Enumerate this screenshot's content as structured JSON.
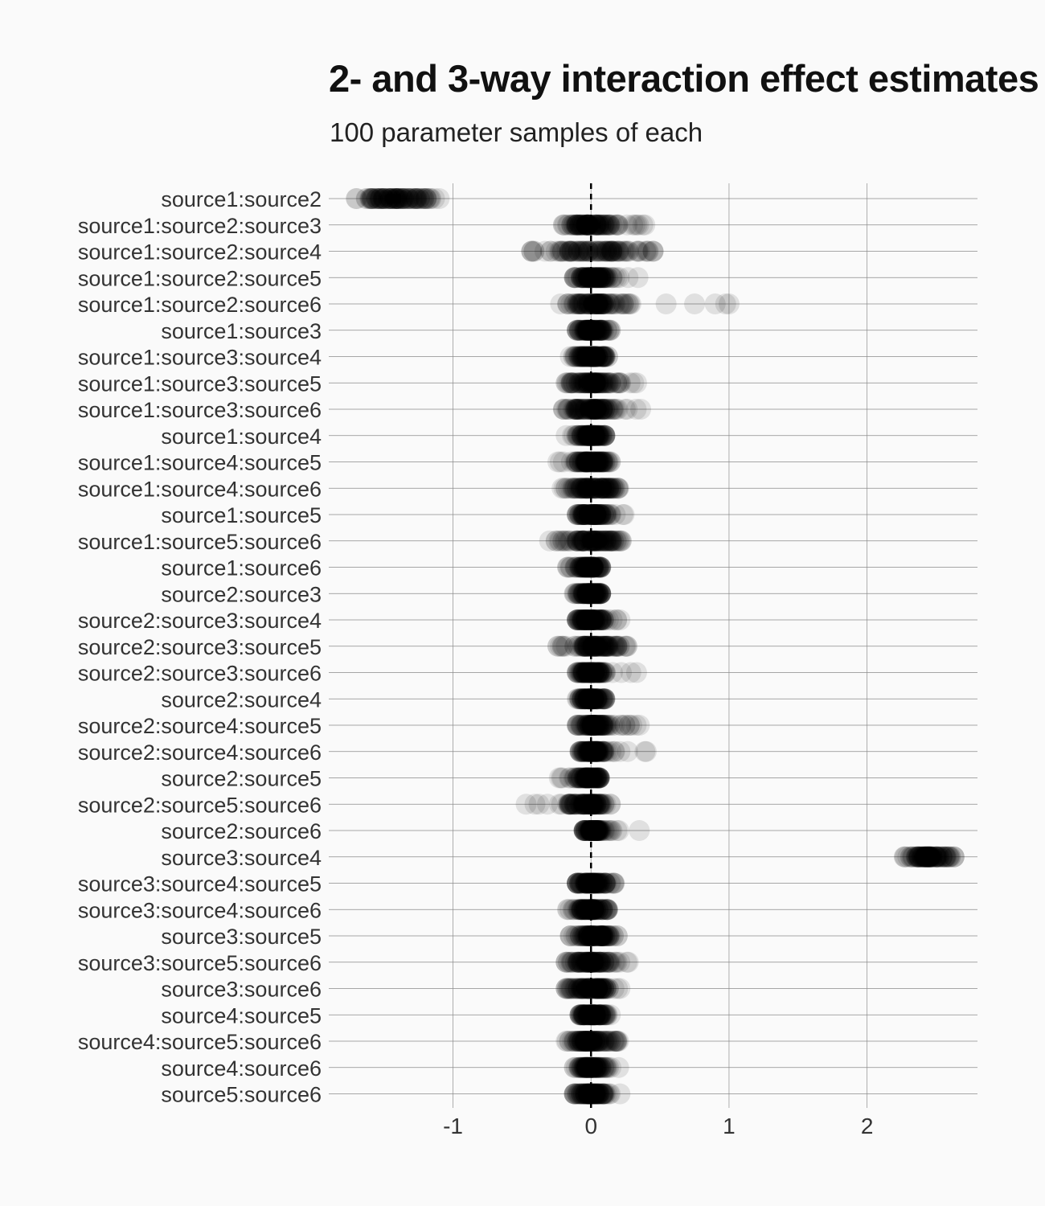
{
  "title": "2- and 3-way interaction effect estimates",
  "subtitle": "100 parameter samples of each",
  "chart_data": {
    "type": "scatter",
    "title": "2- and 3-way interaction effect estimates",
    "subtitle": "100 parameter samples of each",
    "xlabel": "",
    "ylabel": "",
    "xlim": [
      -1.9,
      2.8
    ],
    "xticks": [
      -1,
      0,
      1,
      2
    ],
    "xtick_labels": [
      "-1",
      "0",
      "1",
      "2"
    ],
    "grid": true,
    "reference_line_x": 0,
    "point_color": "#000000",
    "point_alpha": 0.1,
    "categories": [
      "source1:source2",
      "source1:source2:source3",
      "source1:source2:source4",
      "source1:source2:source5",
      "source1:source2:source6",
      "source1:source3",
      "source1:source3:source4",
      "source1:source3:source5",
      "source1:source3:source6",
      "source1:source4",
      "source1:source4:source5",
      "source1:source4:source6",
      "source1:source5",
      "source1:source5:source6",
      "source1:source6",
      "source2:source3",
      "source2:source3:source4",
      "source2:source3:source5",
      "source2:source3:source6",
      "source2:source4",
      "source2:source4:source5",
      "source2:source4:source6",
      "source2:source5",
      "source2:source5:source6",
      "source2:source6",
      "source3:source4",
      "source3:source4:source5",
      "source3:source4:source6",
      "source3:source5",
      "source3:source5:source6",
      "source3:source6",
      "source4:source5",
      "source4:source5:source6",
      "source4:source6",
      "source5:source6"
    ],
    "samples_per_term": 100,
    "sample_summary": [
      {
        "term": "source1:source2",
        "center": -1.4,
        "min": -1.7,
        "max": -1.1
      },
      {
        "term": "source1:source2:source3",
        "center": 0.0,
        "min": -0.2,
        "max": 0.39
      },
      {
        "term": "source1:source2:source4",
        "center": 0.01,
        "min": -0.43,
        "max": 0.45
      },
      {
        "term": "source1:source2:source5",
        "center": 0.01,
        "min": -0.12,
        "max": 0.34
      },
      {
        "term": "source1:source2:source6",
        "center": 0.03,
        "min": -0.22,
        "max": 1.0
      },
      {
        "term": "source1:source3",
        "center": 0.0,
        "min": -0.1,
        "max": 0.14
      },
      {
        "term": "source1:source3:source4",
        "center": 0.0,
        "min": -0.15,
        "max": 0.12
      },
      {
        "term": "source1:source3:source5",
        "center": 0.01,
        "min": -0.18,
        "max": 0.33
      },
      {
        "term": "source1:source3:source6",
        "center": 0.01,
        "min": -0.2,
        "max": 0.36
      },
      {
        "term": "source1:source4",
        "center": 0.0,
        "min": -0.18,
        "max": 0.1
      },
      {
        "term": "source1:source4:source5",
        "center": -0.01,
        "min": -0.24,
        "max": 0.14
      },
      {
        "term": "source1:source4:source6",
        "center": 0.0,
        "min": -0.21,
        "max": 0.2
      },
      {
        "term": "source1:source5",
        "center": 0.01,
        "min": -0.1,
        "max": 0.24
      },
      {
        "term": "source1:source5:source6",
        "center": 0.0,
        "min": -0.3,
        "max": 0.22
      },
      {
        "term": "source1:source6",
        "center": -0.01,
        "min": -0.17,
        "max": 0.07
      },
      {
        "term": "source2:source3",
        "center": 0.0,
        "min": -0.12,
        "max": 0.07
      },
      {
        "term": "source2:source3:source4",
        "center": 0.01,
        "min": -0.1,
        "max": 0.21
      },
      {
        "term": "source2:source3:source5",
        "center": 0.01,
        "min": -0.24,
        "max": 0.26
      },
      {
        "term": "source2:source3:source6",
        "center": 0.01,
        "min": -0.1,
        "max": 0.33
      },
      {
        "term": "source2:source4",
        "center": 0.0,
        "min": -0.1,
        "max": 0.1
      },
      {
        "term": "source2:source4:source5",
        "center": 0.02,
        "min": -0.1,
        "max": 0.35
      },
      {
        "term": "source2:source4:source6",
        "center": 0.01,
        "min": -0.08,
        "max": 0.4
      },
      {
        "term": "source2:source5",
        "center": -0.01,
        "min": -0.23,
        "max": 0.06
      },
      {
        "term": "source2:source5:source6",
        "center": -0.02,
        "min": -0.47,
        "max": 0.14
      },
      {
        "term": "source2:source6",
        "center": 0.02,
        "min": -0.05,
        "max": 0.35
      },
      {
        "term": "source3:source4",
        "center": 2.45,
        "min": 2.27,
        "max": 2.63
      },
      {
        "term": "source3:source4:source5",
        "center": 0.0,
        "min": -0.1,
        "max": 0.17
      },
      {
        "term": "source3:source4:source6",
        "center": 0.0,
        "min": -0.17,
        "max": 0.12
      },
      {
        "term": "source3:source5",
        "center": 0.01,
        "min": -0.15,
        "max": 0.19
      },
      {
        "term": "source3:source5:source6",
        "center": 0.0,
        "min": -0.18,
        "max": 0.27
      },
      {
        "term": "source3:source6",
        "center": 0.0,
        "min": -0.18,
        "max": 0.21
      },
      {
        "term": "source4:source5",
        "center": 0.0,
        "min": -0.08,
        "max": 0.14
      },
      {
        "term": "source4:source5:source6",
        "center": 0.0,
        "min": -0.18,
        "max": 0.2
      },
      {
        "term": "source4:source6",
        "center": 0.0,
        "min": -0.12,
        "max": 0.2
      },
      {
        "term": "source5:source6",
        "center": 0.0,
        "min": -0.12,
        "max": 0.21
      }
    ]
  }
}
